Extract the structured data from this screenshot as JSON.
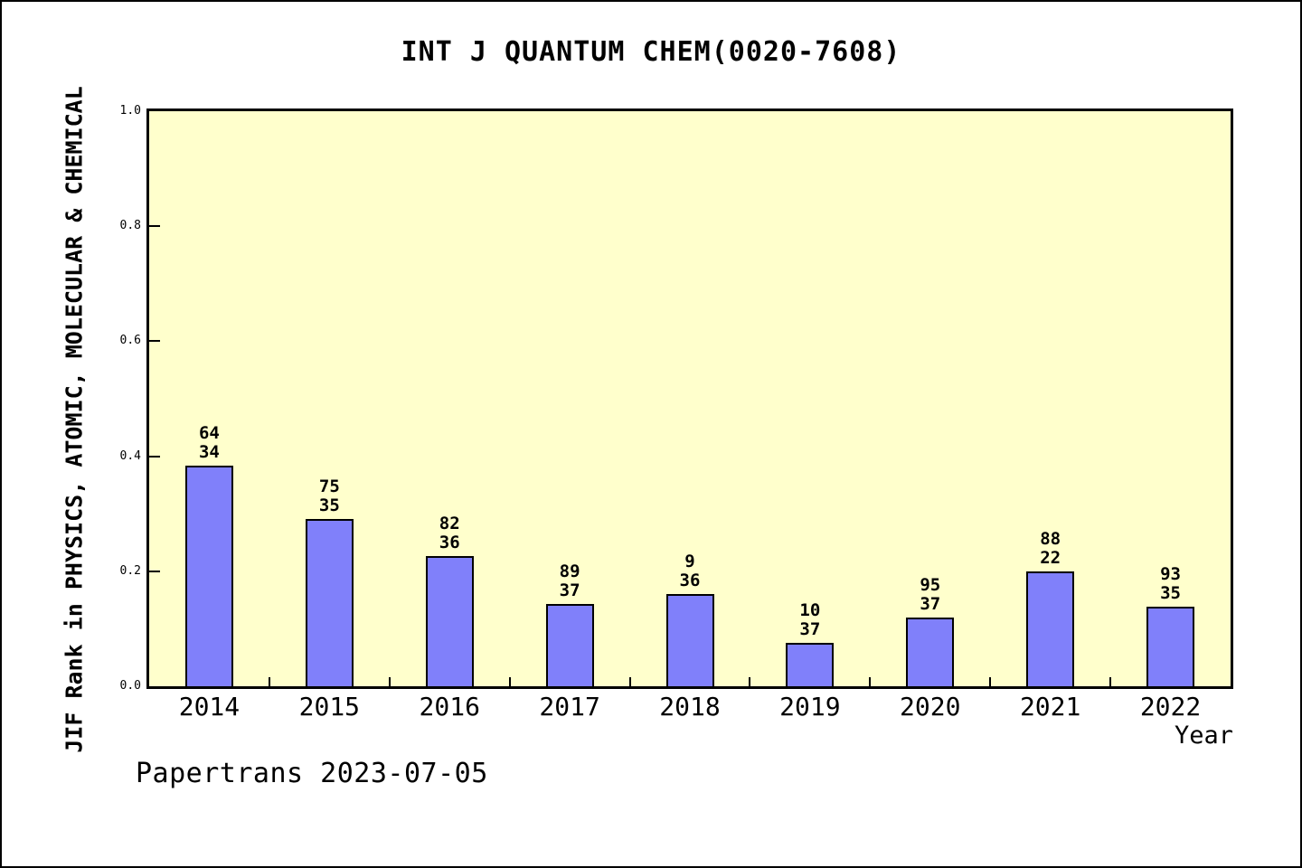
{
  "title": "INT J QUANTUM CHEM(0020-7608)",
  "footer": "Papertrans 2023-07-05",
  "chart_data": {
    "type": "bar",
    "title": "INT J QUANTUM CHEM(0020-7608)",
    "xlabel": "Year",
    "ylabel": "JIF Rank in PHYSICS, ATOMIC, MOLECULAR & CHEMICAL",
    "categories": [
      "2014",
      "2015",
      "2016",
      "2017",
      "2018",
      "2019",
      "2020",
      "2021",
      "2022"
    ],
    "values": [
      0.383,
      0.291,
      0.226,
      0.143,
      0.16,
      0.075,
      0.12,
      0.199,
      0.139
    ],
    "bar_labels": [
      {
        "top": "64",
        "bottom": "34"
      },
      {
        "top": "75",
        "bottom": "35"
      },
      {
        "top": "82",
        "bottom": "36"
      },
      {
        "top": "89",
        "bottom": "37"
      },
      {
        "top": "9",
        "bottom": "36"
      },
      {
        "top": "10",
        "bottom": "37"
      },
      {
        "top": "95",
        "bottom": "37"
      },
      {
        "top": "88",
        "bottom": "22"
      },
      {
        "top": "93",
        "bottom": "35"
      }
    ],
    "ylim": [
      0,
      1
    ],
    "yticks": [
      "0.0",
      "0.2",
      "0.4",
      "0.6",
      "0.8",
      "1.0"
    ],
    "grid": false,
    "legend_position": "none",
    "colors": {
      "bar_fill": "#8080fa",
      "bar_border": "#000000",
      "plot_background": "#ffffcc",
      "page_background": "#ffffff",
      "text": "#000000"
    }
  }
}
